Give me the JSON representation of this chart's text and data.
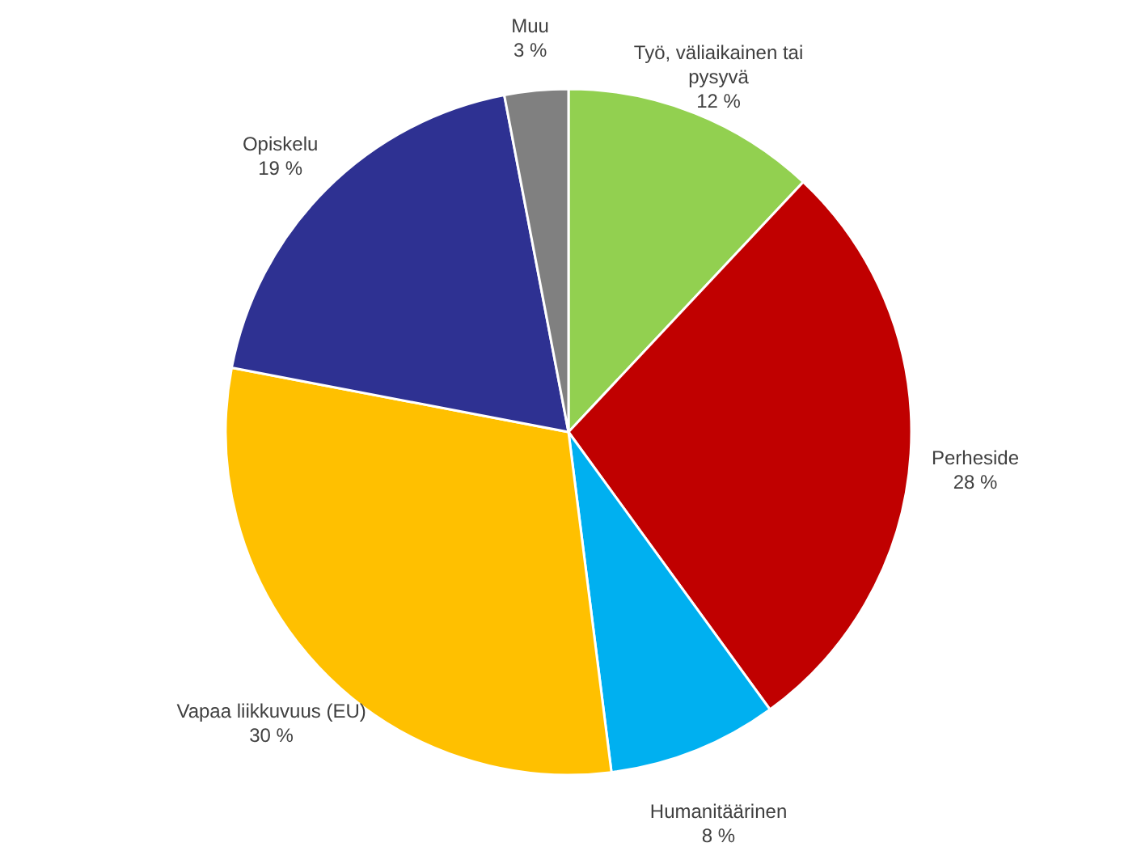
{
  "chart_data": {
    "type": "pie",
    "categories": [
      "Työ, väliaikainen tai pysyvä",
      "Perheside",
      "Humanitäärinen",
      "Vapaa liikkuvuus (EU)",
      "Opiskelu",
      "Muu"
    ],
    "values": [
      12,
      28,
      8,
      30,
      19,
      3
    ],
    "colors": [
      "#92d050",
      "#c00000",
      "#00b0f0",
      "#ffc000",
      "#2e3192",
      "#808080"
    ],
    "value_labels": [
      "12 %",
      "28 %",
      "8 %",
      "30 %",
      "19 %",
      "3 %"
    ]
  }
}
